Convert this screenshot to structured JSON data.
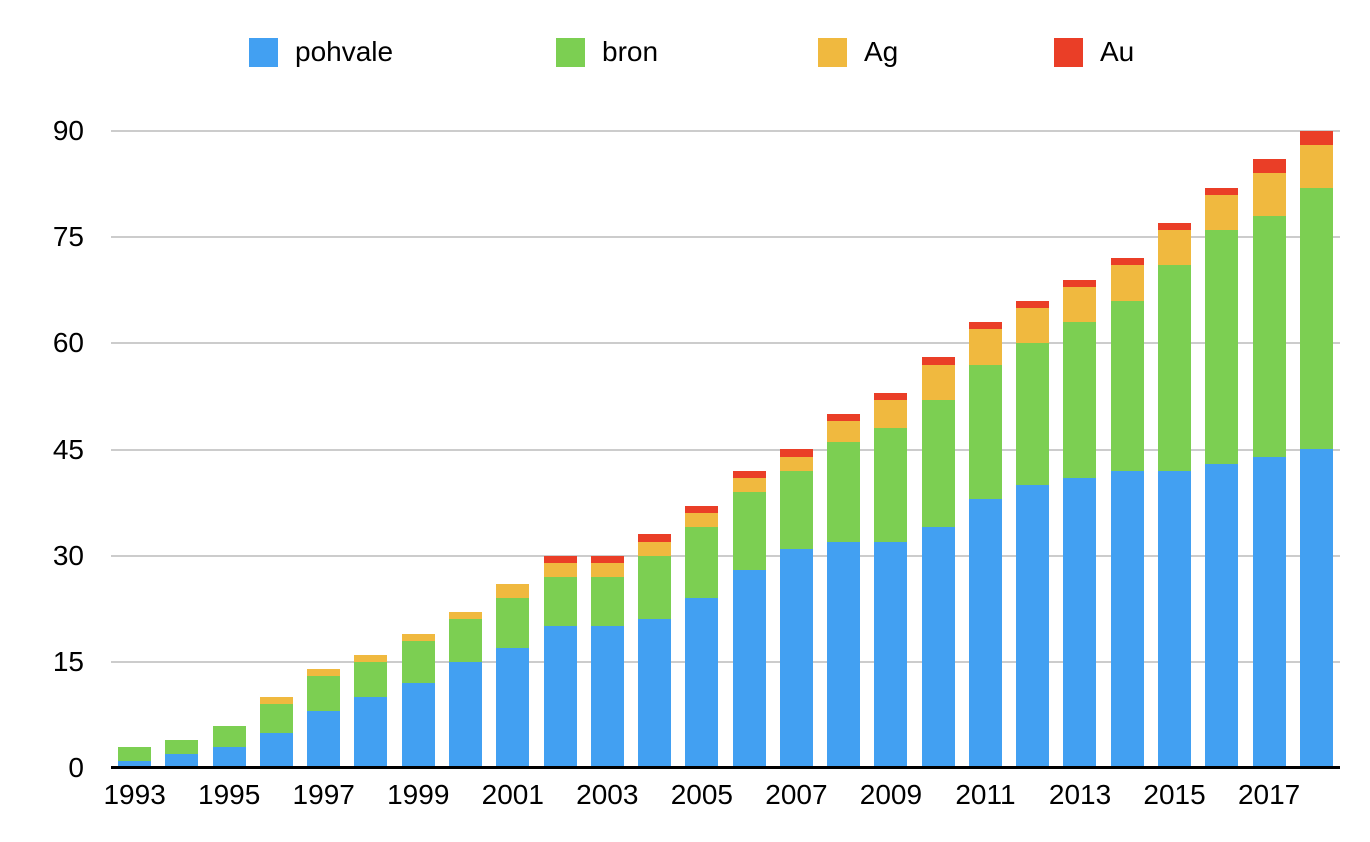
{
  "chart_data": {
    "type": "bar",
    "stacked": true,
    "title": "",
    "xlabel": "",
    "ylabel": "",
    "legend_position": "top",
    "grid": "horizontal",
    "ylim": [
      0,
      90
    ],
    "yticks": [
      0,
      15,
      30,
      45,
      60,
      75,
      90
    ],
    "categories": [
      "1993",
      "1994",
      "1995",
      "1996",
      "1997",
      "1998",
      "1999",
      "2000",
      "2001",
      "2002",
      "2003",
      "2004",
      "2005",
      "2006",
      "2007",
      "2008",
      "2009",
      "2010",
      "2011",
      "2012",
      "2013",
      "2014",
      "2015",
      "2016",
      "2017",
      "2018"
    ],
    "x_tick_labels": [
      "1993",
      "1995",
      "1997",
      "1999",
      "2001",
      "2003",
      "2005",
      "2007",
      "2009",
      "2011",
      "2013",
      "2015",
      "2017"
    ],
    "series": [
      {
        "name": "pohvale",
        "color": "#42A0F2",
        "values": [
          1,
          2,
          3,
          5,
          8,
          10,
          12,
          15,
          17,
          20,
          20,
          21,
          24,
          28,
          31,
          32,
          32,
          34,
          38,
          40,
          41,
          42,
          42,
          43,
          44,
          45
        ]
      },
      {
        "name": "bron",
        "color": "#7CCF52",
        "values": [
          2,
          2,
          3,
          4,
          5,
          5,
          6,
          6,
          7,
          7,
          7,
          9,
          10,
          11,
          11,
          14,
          16,
          18,
          19,
          20,
          22,
          24,
          29,
          33,
          34,
          37
        ]
      },
      {
        "name": "Ag",
        "color": "#F0B93F",
        "values": [
          0,
          0,
          0,
          1,
          1,
          1,
          1,
          1,
          2,
          2,
          2,
          2,
          2,
          2,
          2,
          3,
          4,
          5,
          5,
          5,
          5,
          5,
          5,
          5,
          6,
          6
        ]
      },
      {
        "name": "Au",
        "color": "#EA3E27",
        "values": [
          0,
          0,
          0,
          0,
          0,
          0,
          0,
          0,
          0,
          1,
          1,
          1,
          1,
          1,
          1,
          1,
          1,
          1,
          1,
          1,
          1,
          1,
          1,
          1,
          2,
          2
        ]
      }
    ],
    "totals": [
      3,
      4,
      6,
      10,
      14,
      16,
      19,
      22,
      26,
      30,
      30,
      33,
      37,
      42,
      45,
      50,
      53,
      58,
      63,
      66,
      69,
      72,
      77,
      82,
      86,
      90
    ],
    "colors": {
      "gridline": "#cccccc",
      "axis_line": "#000000",
      "text": "#000000",
      "background": "#ffffff"
    }
  }
}
